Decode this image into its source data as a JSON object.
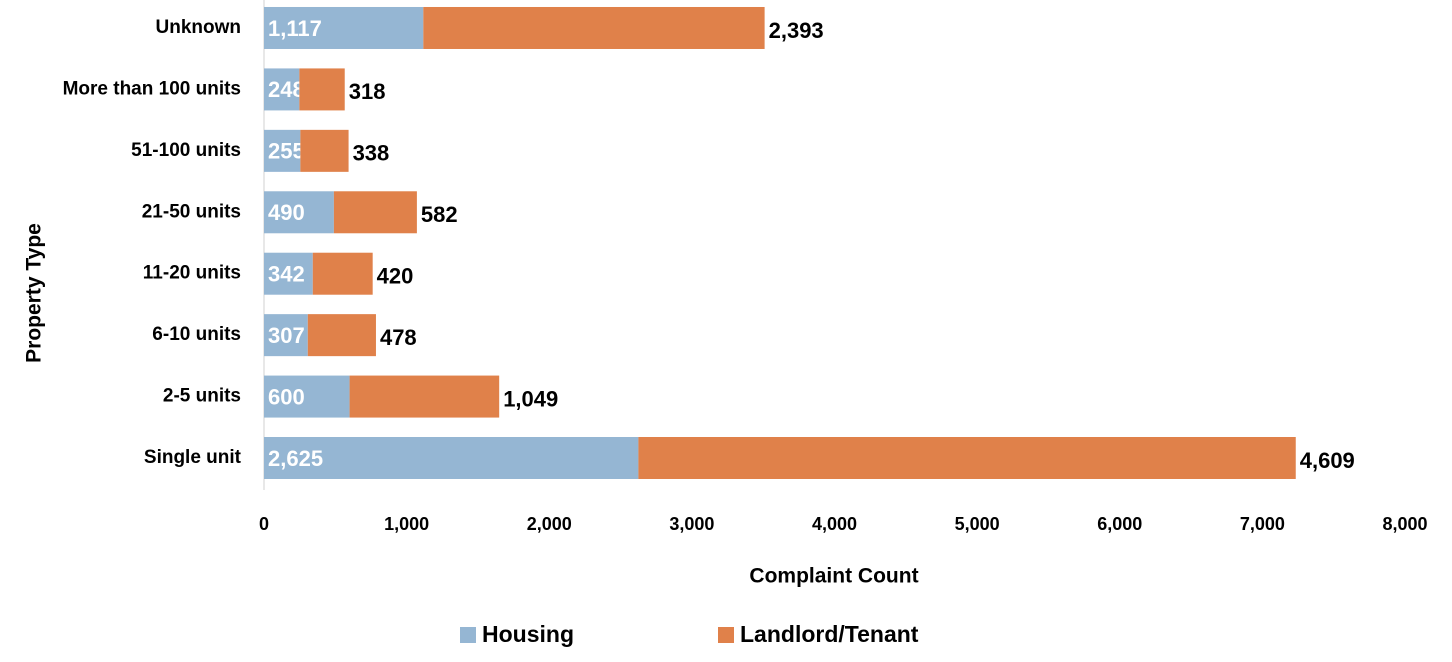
{
  "chart_data": {
    "type": "stacked_bar_horizontal",
    "x_label": "Complaint Count",
    "y_label": "Property Type",
    "categories": [
      "Single unit",
      "2-5 units",
      "6-10 units",
      "11-20 units",
      "21-50 units",
      "51-100 units",
      "More than 100 units",
      "Unknown"
    ],
    "series": [
      {
        "name": "Housing",
        "color": "#95b6d3",
        "values": [
          2625,
          600,
          307,
          342,
          490,
          255,
          248,
          1117
        ],
        "value_labels": [
          "2,625",
          "600",
          "307",
          "342",
          "490",
          "255",
          "248",
          "1,117"
        ]
      },
      {
        "name": "Landlord/Tenant",
        "color": "#e0814a",
        "values": [
          4609,
          1049,
          478,
          420,
          582,
          338,
          318,
          2393
        ],
        "value_labels": [
          "4,609",
          "1,049",
          "478",
          "420",
          "582",
          "338",
          "318",
          "2,393"
        ]
      }
    ],
    "xlim": [
      0,
      8000
    ],
    "xticks": [
      0,
      {
        "value": 1000,
        "label": "1,000"
      },
      {
        "value": 2000,
        "label": "2,000"
      },
      {
        "value": 3000,
        "label": "3,000"
      },
      {
        "value": 4000,
        "label": "4,000"
      },
      {
        "value": 5000,
        "label": "5,000"
      },
      {
        "value": 6000,
        "label": "6,000"
      },
      {
        "value": 7000,
        "label": "7,000"
      },
      {
        "value": 8000,
        "label": "8,000"
      }
    ],
    "legend": "bottom"
  }
}
